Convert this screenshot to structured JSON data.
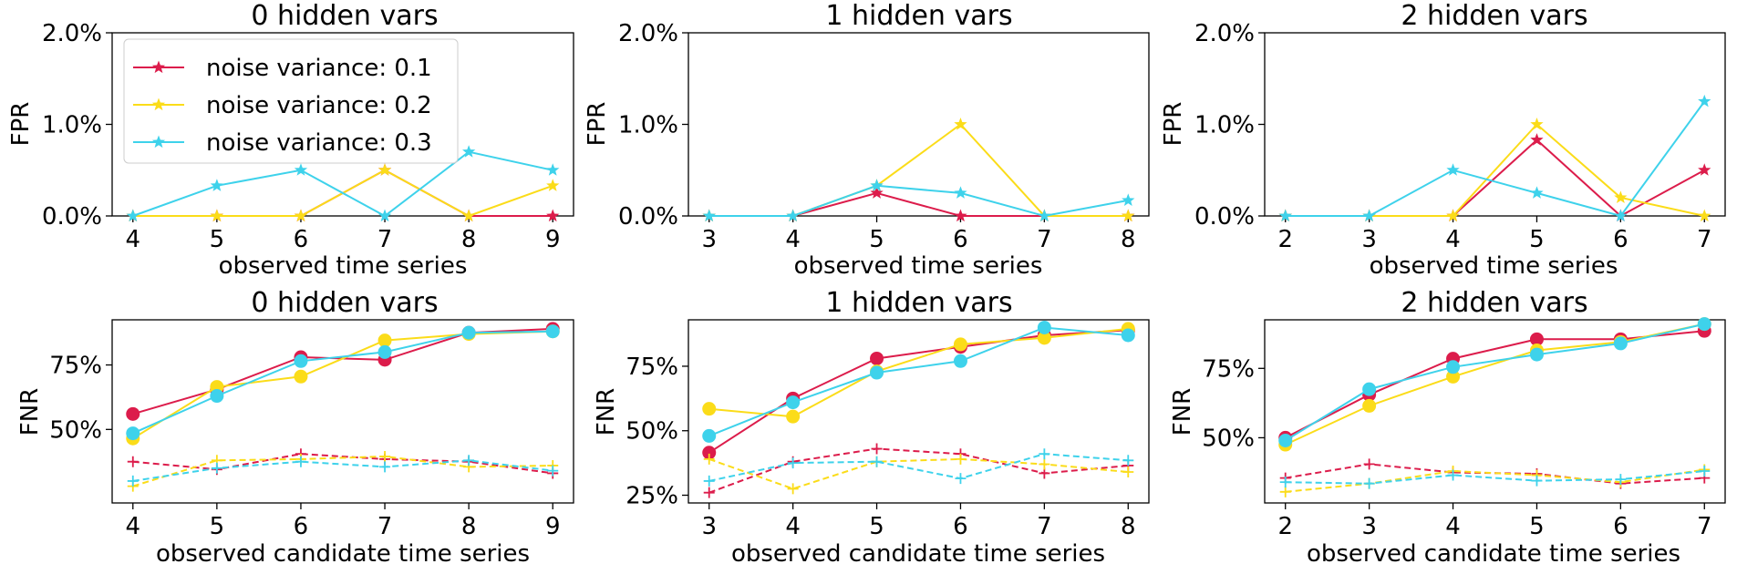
{
  "colors": {
    "noise_0_1": "#dc1c4b",
    "noise_0_2": "#fbdc19",
    "noise_0_3": "#3ed2eb"
  },
  "legend": {
    "placement": "top-left",
    "in_panel": 0,
    "entries": [
      {
        "label": "noise variance: 0.1",
        "color": "#dc1c4b"
      },
      {
        "label": "noise variance: 0.2",
        "color": "#fbdc19"
      },
      {
        "label": "noise variance: 0.3",
        "color": "#3ed2eb"
      }
    ]
  },
  "chart_data": [
    {
      "type": "line",
      "title": "0 hidden vars",
      "xlabel": "observed time series",
      "ylabel": "FPR",
      "x": [
        4,
        5,
        6,
        7,
        8,
        9
      ],
      "ylim": [
        0,
        0.02
      ],
      "yticks": [
        0,
        0.01,
        0.02
      ],
      "ytick_labels": [
        "0.0%",
        "1.0%",
        "2.0%"
      ],
      "series": [
        {
          "name": "noise variance: 0.1",
          "color": "#dc1c4b",
          "marker": "star",
          "values": [
            0,
            0,
            0,
            0.005,
            0,
            0
          ]
        },
        {
          "name": "noise variance: 0.2",
          "color": "#fbdc19",
          "marker": "star",
          "values": [
            0,
            0,
            0,
            0.005,
            0,
            0.0033
          ]
        },
        {
          "name": "noise variance: 0.3",
          "color": "#3ed2eb",
          "marker": "star",
          "values": [
            0,
            0.0033,
            0.005,
            0,
            0.007,
            0.005
          ]
        }
      ]
    },
    {
      "type": "line",
      "title": "1 hidden vars",
      "xlabel": "observed time series",
      "ylabel": "FPR",
      "x": [
        3,
        4,
        5,
        6,
        7,
        8
      ],
      "ylim": [
        0,
        0.02
      ],
      "yticks": [
        0,
        0.01,
        0.02
      ],
      "ytick_labels": [
        "0.0%",
        "1.0%",
        "2.0%"
      ],
      "series": [
        {
          "name": "noise variance: 0.1",
          "color": "#dc1c4b",
          "marker": "star",
          "values": [
            0,
            0,
            0.0025,
            0,
            0,
            0
          ]
        },
        {
          "name": "noise variance: 0.2",
          "color": "#fbdc19",
          "marker": "star",
          "values": [
            0,
            0,
            0.0033,
            0.01,
            0,
            0
          ]
        },
        {
          "name": "noise variance: 0.3",
          "color": "#3ed2eb",
          "marker": "star",
          "values": [
            0,
            0,
            0.0033,
            0.0025,
            0,
            0.0017
          ]
        }
      ]
    },
    {
      "type": "line",
      "title": "2 hidden vars",
      "xlabel": "observed time series",
      "ylabel": "FPR",
      "x": [
        2,
        3,
        4,
        5,
        6,
        7
      ],
      "ylim": [
        0,
        0.02
      ],
      "yticks": [
        0,
        0.01,
        0.02
      ],
      "ytick_labels": [
        "0.0%",
        "1.0%",
        "2.0%"
      ],
      "series": [
        {
          "name": "noise variance: 0.1",
          "color": "#dc1c4b",
          "marker": "star",
          "values": [
            0,
            0,
            0,
            0.0083,
            0,
            0.005
          ]
        },
        {
          "name": "noise variance: 0.2",
          "color": "#fbdc19",
          "marker": "star",
          "values": [
            0,
            0,
            0,
            0.01,
            0.002,
            0
          ]
        },
        {
          "name": "noise variance: 0.3",
          "color": "#3ed2eb",
          "marker": "star",
          "values": [
            0,
            0,
            0.005,
            0.0025,
            0,
            0.0125
          ]
        }
      ]
    },
    {
      "type": "line",
      "title": "0 hidden vars",
      "xlabel": "observed candidate time series",
      "ylabel": "FNR",
      "x": [
        4,
        5,
        6,
        7,
        8,
        9
      ],
      "ylim": [
        0.215,
        0.925
      ],
      "yticks": [
        0.5,
        0.75
      ],
      "ytick_labels": [
        "50%",
        "75%"
      ],
      "series": [
        {
          "name": "noise variance: 0.1",
          "color": "#dc1c4b",
          "marker": "circle",
          "values": [
            0.56,
            0.655,
            0.78,
            0.77,
            0.875,
            0.89
          ]
        },
        {
          "name": "noise variance: 0.2",
          "color": "#fbdc19",
          "marker": "circle",
          "values": [
            0.465,
            0.665,
            0.705,
            0.845,
            0.87,
            0.88
          ]
        },
        {
          "name": "noise variance: 0.3",
          "color": "#3ed2eb",
          "marker": "circle",
          "values": [
            0.485,
            0.63,
            0.765,
            0.8,
            0.875,
            0.88
          ]
        },
        {
          "color": "#dc1c4b",
          "marker": "plus",
          "dashed": true,
          "values": [
            0.375,
            0.345,
            0.405,
            0.385,
            0.375,
            0.33
          ]
        },
        {
          "color": "#fbdc19",
          "marker": "plus",
          "dashed": true,
          "values": [
            0.28,
            0.38,
            0.385,
            0.395,
            0.355,
            0.36
          ]
        },
        {
          "color": "#3ed2eb",
          "marker": "plus",
          "dashed": true,
          "values": [
            0.3,
            0.35,
            0.375,
            0.355,
            0.38,
            0.34
          ]
        }
      ]
    },
    {
      "type": "line",
      "title": "1 hidden vars",
      "xlabel": "observed candidate time series",
      "ylabel": "FNR",
      "x": [
        3,
        4,
        5,
        6,
        7,
        8
      ],
      "ylim": [
        0.22,
        0.93
      ],
      "yticks": [
        0.25,
        0.5,
        0.75
      ],
      "ytick_labels": [
        "25%",
        "50%",
        "75%"
      ],
      "series": [
        {
          "name": "noise variance: 0.1",
          "color": "#dc1c4b",
          "marker": "circle",
          "values": [
            0.415,
            0.625,
            0.78,
            0.825,
            0.87,
            0.89
          ]
        },
        {
          "name": "noise variance: 0.2",
          "color": "#fbdc19",
          "marker": "circle",
          "values": [
            0.585,
            0.555,
            0.73,
            0.835,
            0.86,
            0.895
          ]
        },
        {
          "name": "noise variance: 0.3",
          "color": "#3ed2eb",
          "marker": "circle",
          "values": [
            0.48,
            0.61,
            0.725,
            0.77,
            0.9,
            0.87
          ]
        },
        {
          "color": "#dc1c4b",
          "marker": "plus",
          "dashed": true,
          "values": [
            0.26,
            0.38,
            0.43,
            0.41,
            0.335,
            0.365
          ]
        },
        {
          "color": "#fbdc19",
          "marker": "plus",
          "dashed": true,
          "values": [
            0.39,
            0.275,
            0.38,
            0.39,
            0.37,
            0.34
          ]
        },
        {
          "color": "#3ed2eb",
          "marker": "plus",
          "dashed": true,
          "values": [
            0.305,
            0.375,
            0.38,
            0.315,
            0.41,
            0.385
          ]
        }
      ]
    },
    {
      "type": "line",
      "title": "2 hidden vars",
      "xlabel": "observed candidate time series",
      "ylabel": "FNR",
      "x": [
        2,
        3,
        4,
        5,
        6,
        7
      ],
      "ylim": [
        0.265,
        0.925
      ],
      "yticks": [
        0.5,
        0.75
      ],
      "ytick_labels": [
        "50%",
        "75%"
      ],
      "series": [
        {
          "name": "noise variance: 0.1",
          "color": "#dc1c4b",
          "marker": "circle",
          "values": [
            0.5,
            0.655,
            0.785,
            0.855,
            0.855,
            0.885
          ]
        },
        {
          "name": "noise variance: 0.2",
          "color": "#fbdc19",
          "marker": "circle",
          "values": [
            0.475,
            0.615,
            0.72,
            0.815,
            0.845,
            0.91
          ]
        },
        {
          "name": "noise variance: 0.3",
          "color": "#3ed2eb",
          "marker": "circle",
          "values": [
            0.49,
            0.675,
            0.755,
            0.8,
            0.84,
            0.91
          ]
        },
        {
          "color": "#dc1c4b",
          "marker": "plus",
          "dashed": true,
          "values": [
            0.355,
            0.405,
            0.375,
            0.37,
            0.335,
            0.355
          ]
        },
        {
          "color": "#fbdc19",
          "marker": "plus",
          "dashed": true,
          "values": [
            0.305,
            0.335,
            0.38,
            0.365,
            0.34,
            0.385
          ]
        },
        {
          "color": "#3ed2eb",
          "marker": "plus",
          "dashed": true,
          "values": [
            0.34,
            0.335,
            0.365,
            0.345,
            0.35,
            0.38
          ]
        }
      ]
    }
  ]
}
